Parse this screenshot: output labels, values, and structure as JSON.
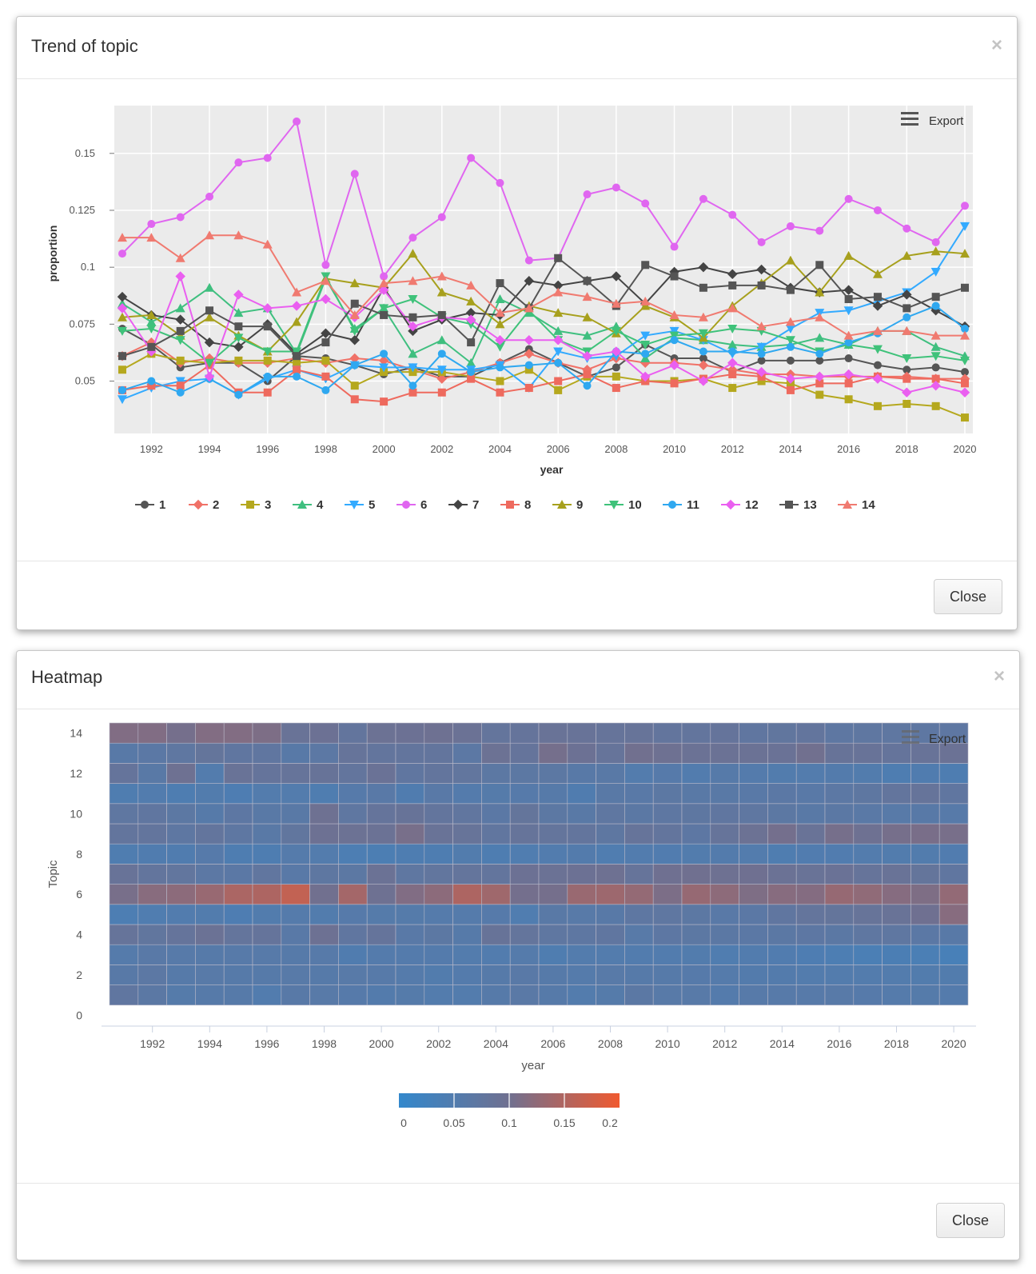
{
  "trend_modal": {
    "title": "Trend of topic",
    "close_x": "×",
    "close_label": "Close",
    "export_label": "Export",
    "export_icon": "menu-icon"
  },
  "heat_modal": {
    "title": "Heatmap",
    "close_x": "×",
    "close_label": "Close",
    "export_label": "Export",
    "export_icon": "menu-icon"
  },
  "chart_data": [
    {
      "type": "line",
      "xlabel": "year",
      "ylabel": "proportion",
      "xlim": [
        1991,
        2020
      ],
      "ylim": [
        0.027,
        0.171
      ],
      "yticks": [
        0.05,
        0.075,
        0.1,
        0.125,
        0.15
      ],
      "ytick_labels": [
        "0.05",
        "0.075",
        "0.1",
        "0.125",
        "0.15"
      ],
      "xticks": [
        1992,
        1994,
        1996,
        1998,
        2000,
        2002,
        2004,
        2006,
        2008,
        2010,
        2012,
        2014,
        2016,
        2018,
        2020
      ],
      "grid": true,
      "legend": "bottom",
      "x": [
        1991,
        1992,
        1993,
        1994,
        1995,
        1996,
        1997,
        1998,
        1999,
        2000,
        2001,
        2002,
        2003,
        2004,
        2005,
        2006,
        2007,
        2008,
        2009,
        2010,
        2011,
        2012,
        2013,
        2014,
        2015,
        2016,
        2017,
        2018,
        2019,
        2020
      ],
      "series": [
        {
          "name": "1",
          "color": "#555555",
          "marker": "circle",
          "values": [
            0.073,
            0.066,
            0.056,
            0.058,
            0.058,
            0.05,
            0.061,
            0.06,
            0.057,
            0.053,
            0.056,
            0.052,
            0.052,
            0.058,
            0.064,
            0.058,
            0.052,
            0.056,
            0.066,
            0.06,
            0.06,
            0.054,
            0.059,
            0.059,
            0.059,
            0.06,
            0.057,
            0.055,
            0.056,
            0.054
          ]
        },
        {
          "name": "2",
          "color": "#f07167",
          "marker": "diamond",
          "values": [
            0.061,
            0.067,
            0.058,
            0.06,
            0.058,
            0.058,
            0.06,
            0.058,
            0.06,
            0.059,
            0.055,
            0.051,
            0.054,
            0.058,
            0.062,
            0.058,
            0.055,
            0.06,
            0.058,
            0.058,
            0.057,
            0.055,
            0.053,
            0.053,
            0.052,
            0.052,
            0.052,
            0.052,
            0.051,
            0.051
          ]
        },
        {
          "name": "3",
          "color": "#b5a81e",
          "marker": "square",
          "values": [
            0.055,
            0.062,
            0.059,
            0.058,
            0.059,
            0.059,
            0.058,
            0.059,
            0.048,
            0.054,
            0.054,
            0.054,
            0.052,
            0.05,
            0.055,
            0.046,
            0.052,
            0.052,
            0.05,
            0.05,
            0.051,
            0.047,
            0.05,
            0.049,
            0.044,
            0.042,
            0.039,
            0.04,
            0.039,
            0.034
          ]
        },
        {
          "name": "4",
          "color": "#3fbf7f",
          "marker": "triangle",
          "values": [
            0.084,
            0.076,
            0.082,
            0.091,
            0.08,
            0.082,
            0.062,
            0.095,
            0.073,
            0.082,
            0.062,
            0.068,
            0.058,
            0.086,
            0.08,
            0.072,
            0.07,
            0.074,
            0.06,
            0.069,
            0.068,
            0.066,
            0.065,
            0.066,
            0.069,
            0.066,
            0.072,
            0.072,
            0.065,
            0.061
          ]
        },
        {
          "name": "5",
          "color": "#33aaff",
          "marker": "triangle-down",
          "values": [
            0.042,
            0.047,
            0.05,
            0.051,
            0.044,
            0.051,
            0.055,
            0.051,
            0.057,
            0.056,
            0.056,
            0.055,
            0.055,
            0.057,
            0.047,
            0.063,
            0.06,
            0.061,
            0.07,
            0.072,
            0.068,
            0.062,
            0.065,
            0.073,
            0.08,
            0.081,
            0.085,
            0.089,
            0.098,
            0.118
          ]
        },
        {
          "name": "6",
          "color": "#e066f0",
          "marker": "circle",
          "values": [
            0.106,
            0.119,
            0.122,
            0.131,
            0.146,
            0.148,
            0.164,
            0.101,
            0.141,
            0.096,
            0.113,
            0.122,
            0.148,
            0.137,
            0.103,
            0.104,
            0.132,
            0.135,
            0.128,
            0.109,
            0.13,
            0.123,
            0.111,
            0.118,
            0.116,
            0.13,
            0.125,
            0.117,
            0.111,
            0.127
          ]
        },
        {
          "name": "7",
          "color": "#444444",
          "marker": "diamond",
          "values": [
            0.087,
            0.079,
            0.077,
            0.067,
            0.065,
            0.075,
            0.062,
            0.071,
            0.068,
            0.091,
            0.072,
            0.077,
            0.08,
            0.079,
            0.094,
            0.092,
            0.094,
            0.096,
            0.084,
            0.098,
            0.1,
            0.097,
            0.099,
            0.091,
            0.089,
            0.09,
            0.083,
            0.088,
            0.081,
            0.074
          ]
        },
        {
          "name": "8",
          "color": "#ee6a5e",
          "marker": "square",
          "values": [
            0.046,
            0.048,
            0.048,
            0.057,
            0.045,
            0.045,
            0.055,
            0.052,
            0.042,
            0.041,
            0.045,
            0.045,
            0.051,
            0.045,
            0.047,
            0.05,
            0.053,
            0.047,
            0.05,
            0.049,
            0.051,
            0.053,
            0.052,
            0.046,
            0.049,
            0.049,
            0.052,
            0.051,
            0.051,
            0.049
          ]
        },
        {
          "name": "9",
          "color": "#a7a01d",
          "marker": "triangle",
          "values": [
            0.078,
            0.079,
            0.07,
            0.078,
            0.07,
            0.063,
            0.076,
            0.095,
            0.093,
            0.091,
            0.106,
            0.089,
            0.085,
            0.075,
            0.083,
            0.08,
            0.078,
            0.071,
            0.083,
            0.078,
            0.069,
            0.083,
            0.093,
            0.103,
            0.089,
            0.105,
            0.097,
            0.105,
            0.107,
            0.106
          ]
        },
        {
          "name": "10",
          "color": "#3fc27a",
          "marker": "triangle-down",
          "values": [
            0.072,
            0.073,
            0.068,
            0.058,
            0.069,
            0.063,
            0.063,
            0.096,
            0.072,
            0.082,
            0.086,
            0.078,
            0.075,
            0.065,
            0.081,
            0.068,
            0.063,
            0.072,
            0.066,
            0.07,
            0.071,
            0.073,
            0.072,
            0.068,
            0.063,
            0.066,
            0.064,
            0.06,
            0.061,
            0.059
          ]
        },
        {
          "name": "11",
          "color": "#2fa8f0",
          "marker": "circle",
          "values": [
            0.046,
            0.05,
            0.045,
            0.051,
            0.044,
            0.052,
            0.052,
            0.046,
            0.057,
            0.062,
            0.048,
            0.062,
            0.054,
            0.056,
            0.057,
            0.058,
            0.048,
            0.063,
            0.062,
            0.068,
            0.063,
            0.063,
            0.062,
            0.065,
            0.062,
            0.067,
            0.071,
            0.078,
            0.083,
            0.073
          ]
        },
        {
          "name": "12",
          "color": "#ea5ff0",
          "marker": "diamond",
          "values": [
            0.082,
            0.063,
            0.096,
            0.052,
            0.088,
            0.082,
            0.083,
            0.086,
            0.078,
            0.09,
            0.074,
            0.078,
            0.077,
            0.068,
            0.068,
            0.068,
            0.061,
            0.063,
            0.052,
            0.057,
            0.05,
            0.058,
            0.054,
            0.051,
            0.052,
            0.053,
            0.051,
            0.045,
            0.048,
            0.045
          ]
        },
        {
          "name": "13",
          "color": "#555555",
          "marker": "square",
          "values": [
            0.061,
            0.065,
            0.072,
            0.081,
            0.074,
            0.074,
            0.061,
            0.067,
            0.084,
            0.079,
            0.078,
            0.079,
            0.067,
            0.093,
            0.082,
            0.104,
            0.094,
            0.083,
            0.101,
            0.096,
            0.091,
            0.092,
            0.092,
            0.09,
            0.101,
            0.086,
            0.087,
            0.082,
            0.087,
            0.091
          ]
        },
        {
          "name": "14",
          "color": "#f07a70",
          "marker": "triangle",
          "values": [
            0.113,
            0.113,
            0.104,
            0.114,
            0.114,
            0.11,
            0.089,
            0.094,
            0.079,
            0.093,
            0.094,
            0.096,
            0.092,
            0.08,
            0.082,
            0.089,
            0.087,
            0.084,
            0.085,
            0.079,
            0.078,
            0.082,
            0.074,
            0.076,
            0.078,
            0.07,
            0.072,
            0.072,
            0.07,
            0.07
          ]
        }
      ]
    },
    {
      "type": "heatmap",
      "xlabel": "year",
      "ylabel": "Topic",
      "x": [
        1991,
        1992,
        1993,
        1994,
        1995,
        1996,
        1997,
        1998,
        1999,
        2000,
        2001,
        2002,
        2003,
        2004,
        2005,
        2006,
        2007,
        2008,
        2009,
        2010,
        2011,
        2012,
        2013,
        2014,
        2015,
        2016,
        2017,
        2018,
        2019,
        2020
      ],
      "xticks": [
        1992,
        1994,
        1996,
        1998,
        2000,
        2002,
        2004,
        2006,
        2008,
        2010,
        2012,
        2014,
        2016,
        2018,
        2020
      ],
      "yticks": [
        0,
        2,
        4,
        6,
        8,
        10,
        12,
        14
      ],
      "y_range": [
        0,
        14
      ],
      "color_axis": {
        "min": 0,
        "max": 0.2,
        "stops": [
          "#3388cc",
          "#707090",
          "#f05a30"
        ],
        "ticks": [
          "0",
          "0.05",
          "0.1",
          "0.15",
          "0.2"
        ]
      },
      "rows_from": "series of chart 1 (topic 1 at bottom, topic 14 at top)"
    }
  ]
}
